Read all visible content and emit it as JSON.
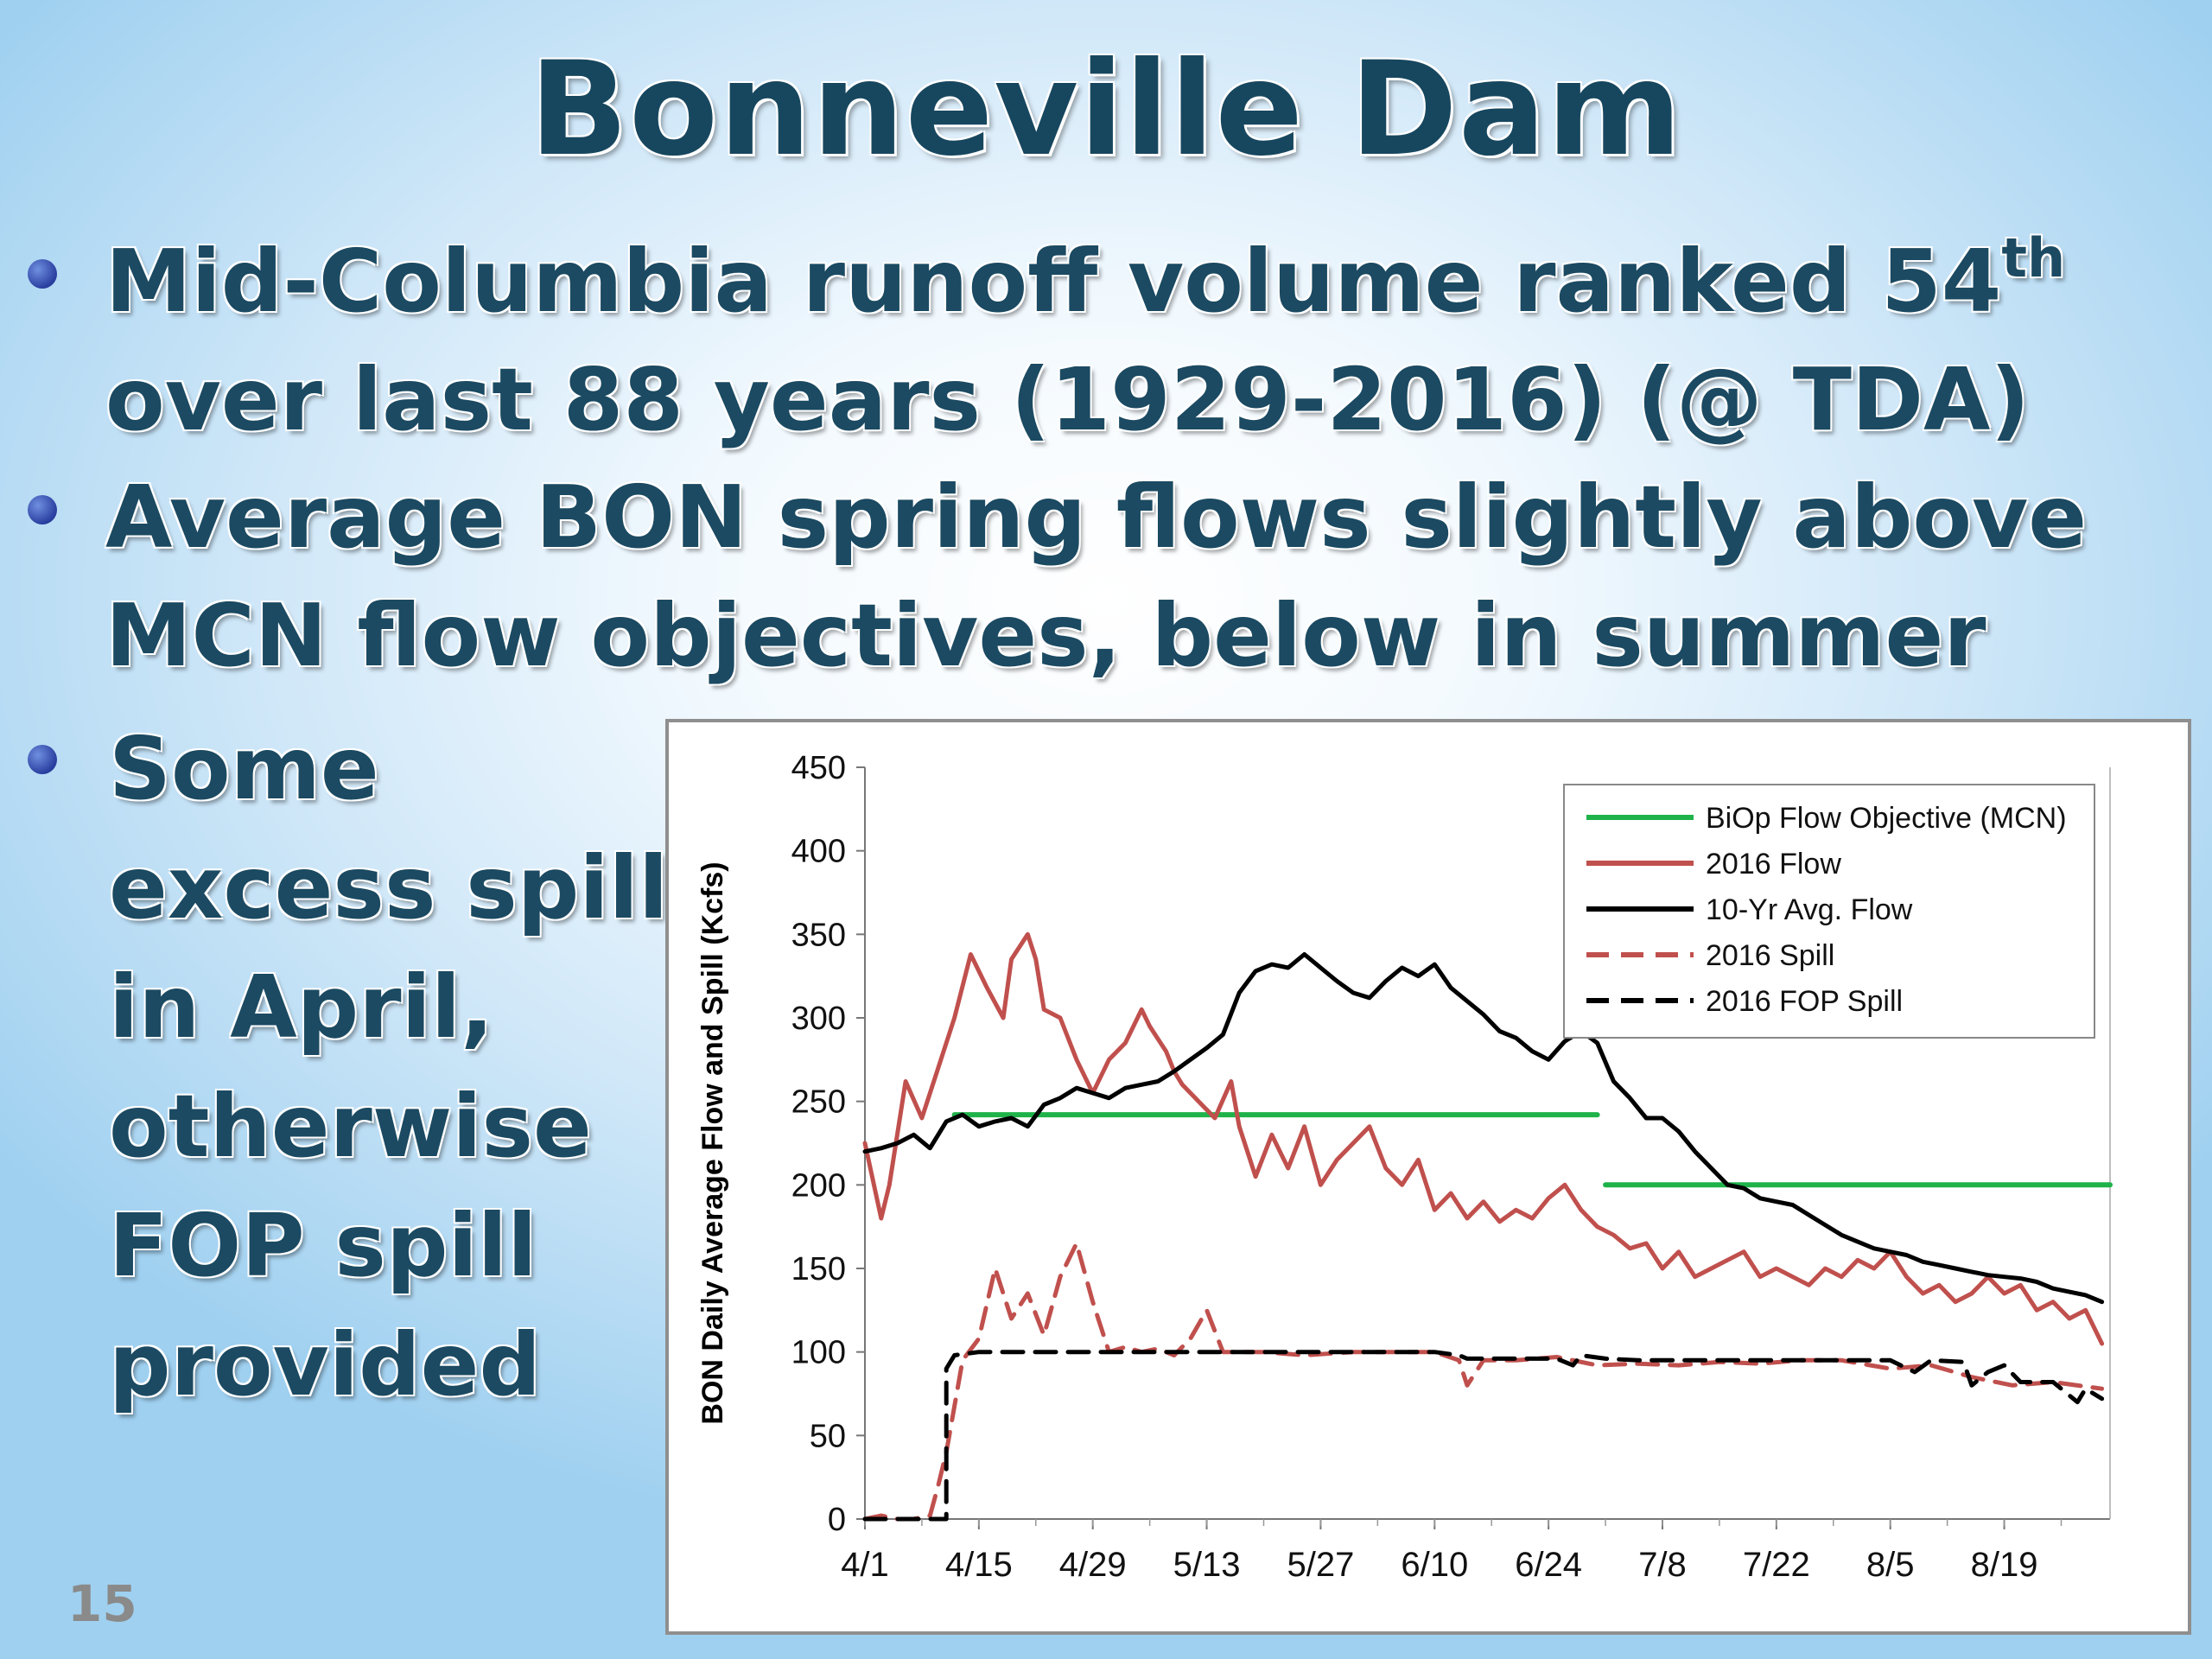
{
  "slide": {
    "title": "Bonneville Dam",
    "bullets": [
      {
        "lines": [
          "Mid-Columbia runoff volume ranked 54",
          "over last 88 years (1929-2016) (@ TDA)"
        ],
        "superscript": "th"
      },
      {
        "lines": [
          "Average BON spring flows slightly above",
          "MCN flow objectives, below in summer"
        ]
      },
      {
        "lines": [
          "Some",
          "excess spill",
          "in April,",
          "otherwise",
          "FOP spill",
          "provided"
        ]
      }
    ],
    "slide_number": "15"
  },
  "chart_data": {
    "type": "line",
    "title": "",
    "xlabel": "",
    "ylabel": "BON Daily Average Flow and Spill (Kcfs)",
    "ylim": [
      0,
      450
    ],
    "yticks": [
      "0",
      "50",
      "100",
      "150",
      "200",
      "250",
      "300",
      "350",
      "400",
      "450"
    ],
    "xlim": [
      "4/1",
      "9/1"
    ],
    "xticks": [
      "4/1",
      "4/15",
      "4/29",
      "5/13",
      "5/27",
      "6/10",
      "6/24",
      "7/8",
      "7/22",
      "8/5",
      "8/19"
    ],
    "grid": false,
    "legend": "top-right",
    "series": [
      {
        "name": "BiOp Flow Objective (MCN)",
        "color": "#1fb24a",
        "style": "solid",
        "segments": [
          {
            "x": [
              "4/12",
              "6/30"
            ],
            "y": [
              242,
              242
            ]
          },
          {
            "x": [
              "7/1",
              "9/1"
            ],
            "y": [
              200,
              200
            ]
          }
        ]
      },
      {
        "name": "2016 Flow",
        "color": "#c0504d",
        "style": "solid",
        "x": [
          "4/1",
          "4/3",
          "4/4",
          "4/6",
          "4/8",
          "4/10",
          "4/12",
          "4/14",
          "4/16",
          "4/18",
          "4/19",
          "4/21",
          "4/22",
          "4/23",
          "4/25",
          "4/27",
          "4/29",
          "5/1",
          "5/3",
          "5/5",
          "5/6",
          "5/8",
          "5/9",
          "5/10",
          "5/12",
          "5/14",
          "5/16",
          "5/17",
          "5/19",
          "5/21",
          "5/22",
          "5/23",
          "5/25",
          "5/27",
          "5/29",
          "5/31",
          "6/2",
          "6/4",
          "6/6",
          "6/8",
          "6/10",
          "6/12",
          "6/14",
          "6/16",
          "6/18",
          "6/20",
          "6/22",
          "6/24",
          "6/26",
          "6/28",
          "6/30",
          "7/2",
          "7/4",
          "7/6",
          "7/8",
          "7/10",
          "7/12",
          "7/14",
          "7/16",
          "7/18",
          "7/20",
          "7/22",
          "7/24",
          "7/26",
          "7/28",
          "7/30",
          "8/1",
          "8/3",
          "8/5",
          "8/7",
          "8/9",
          "8/11",
          "8/13",
          "8/15",
          "8/17",
          "8/19",
          "8/21",
          "8/23",
          "8/25",
          "8/27",
          "8/29",
          "8/31"
        ],
        "y": [
          225,
          180,
          200,
          262,
          240,
          270,
          300,
          338,
          318,
          300,
          335,
          350,
          335,
          305,
          300,
          275,
          255,
          275,
          285,
          305,
          295,
          280,
          268,
          260,
          250,
          240,
          262,
          235,
          205,
          230,
          220,
          210,
          235,
          200,
          215,
          225,
          235,
          210,
          200,
          215,
          185,
          195,
          180,
          190,
          178,
          185,
          180,
          192,
          200,
          185,
          175,
          170,
          162,
          165,
          150,
          160,
          145,
          150,
          155,
          160,
          145,
          150,
          145,
          140,
          150,
          145,
          155,
          150,
          160,
          145,
          135,
          140,
          130,
          135,
          145,
          135,
          140,
          125,
          130,
          120,
          125,
          105
        ]
      },
      {
        "name": "10-Yr Avg. Flow",
        "color": "#000000",
        "style": "solid",
        "x": [
          "4/1",
          "4/3",
          "4/5",
          "4/7",
          "4/9",
          "4/11",
          "4/13",
          "4/15",
          "4/17",
          "4/19",
          "4/21",
          "4/23",
          "4/25",
          "4/27",
          "4/29",
          "5/1",
          "5/3",
          "5/5",
          "5/7",
          "5/9",
          "5/11",
          "5/13",
          "5/15",
          "5/17",
          "5/19",
          "5/21",
          "5/23",
          "5/25",
          "5/27",
          "5/29",
          "5/31",
          "6/2",
          "6/4",
          "6/6",
          "6/8",
          "6/10",
          "6/12",
          "6/14",
          "6/16",
          "6/18",
          "6/20",
          "6/22",
          "6/24",
          "6/26",
          "6/28",
          "6/30",
          "7/2",
          "7/4",
          "7/6",
          "7/8",
          "7/10",
          "7/12",
          "7/14",
          "7/16",
          "7/18",
          "7/20",
          "7/22",
          "7/24",
          "7/26",
          "7/28",
          "7/30",
          "8/1",
          "8/3",
          "8/5",
          "8/7",
          "8/9",
          "8/11",
          "8/13",
          "8/15",
          "8/17",
          "8/19",
          "8/21",
          "8/23",
          "8/25",
          "8/27",
          "8/29",
          "8/31"
        ],
        "y": [
          220,
          222,
          225,
          230,
          222,
          238,
          242,
          235,
          238,
          240,
          235,
          248,
          252,
          258,
          255,
          252,
          258,
          260,
          262,
          268,
          275,
          282,
          290,
          315,
          328,
          332,
          330,
          338,
          330,
          322,
          315,
          312,
          322,
          330,
          325,
          332,
          318,
          310,
          302,
          292,
          288,
          280,
          275,
          286,
          292,
          285,
          262,
          252,
          240,
          240,
          232,
          220,
          210,
          200,
          198,
          192,
          190,
          188,
          182,
          176,
          170,
          166,
          162,
          160,
          158,
          154,
          152,
          150,
          148,
          146,
          145,
          144,
          142,
          138,
          136,
          134,
          130
        ]
      },
      {
        "name": "2016 Spill",
        "color": "#c0504d",
        "style": "dashed",
        "x": [
          "4/1",
          "4/3",
          "4/5",
          "4/7",
          "4/9",
          "4/10",
          "4/11",
          "4/13",
          "4/15",
          "4/17",
          "4/19",
          "4/21",
          "4/23",
          "4/25",
          "4/27",
          "4/29",
          "5/1",
          "5/3",
          "5/5",
          "5/7",
          "5/9",
          "5/11",
          "5/13",
          "5/15",
          "5/20",
          "5/25",
          "5/31",
          "6/5",
          "6/10",
          "6/13",
          "6/14",
          "6/16",
          "6/20",
          "6/25",
          "6/30",
          "7/5",
          "7/10",
          "7/15",
          "7/20",
          "7/25",
          "7/30",
          "8/5",
          "8/10",
          "8/15",
          "8/20",
          "8/25",
          "8/31"
        ],
        "y": [
          0,
          2,
          0,
          0,
          2,
          20,
          40,
          95,
          108,
          150,
          120,
          135,
          110,
          145,
          165,
          130,
          100,
          103,
          100,
          102,
          98,
          108,
          125,
          100,
          100,
          98,
          100,
          100,
          100,
          95,
          80,
          95,
          95,
          97,
          92,
          93,
          92,
          94,
          93,
          95,
          95,
          90,
          92,
          85,
          80,
          82,
          78
        ]
      },
      {
        "name": "2016 FOP Spill",
        "color": "#000000",
        "style": "dashed",
        "x": [
          "4/1",
          "4/7",
          "4/11",
          "4/11",
          "4/12",
          "4/15",
          "4/20",
          "5/1",
          "5/10",
          "5/20",
          "6/1",
          "6/10",
          "6/13",
          "6/14",
          "6/20",
          "6/25",
          "6/27",
          "6/28",
          "7/1",
          "7/5",
          "7/10",
          "7/20",
          "7/30",
          "8/5",
          "8/8",
          "8/10",
          "8/14",
          "8/15",
          "8/17",
          "8/19",
          "8/21",
          "8/25",
          "8/28",
          "8/29",
          "8/31"
        ],
        "y": [
          0,
          0,
          0,
          90,
          98,
          100,
          100,
          100,
          100,
          100,
          100,
          100,
          98,
          96,
          96,
          96,
          92,
          98,
          96,
          95,
          95,
          95,
          95,
          95,
          88,
          95,
          94,
          80,
          88,
          92,
          82,
          82,
          70,
          78,
          72
        ]
      }
    ]
  }
}
